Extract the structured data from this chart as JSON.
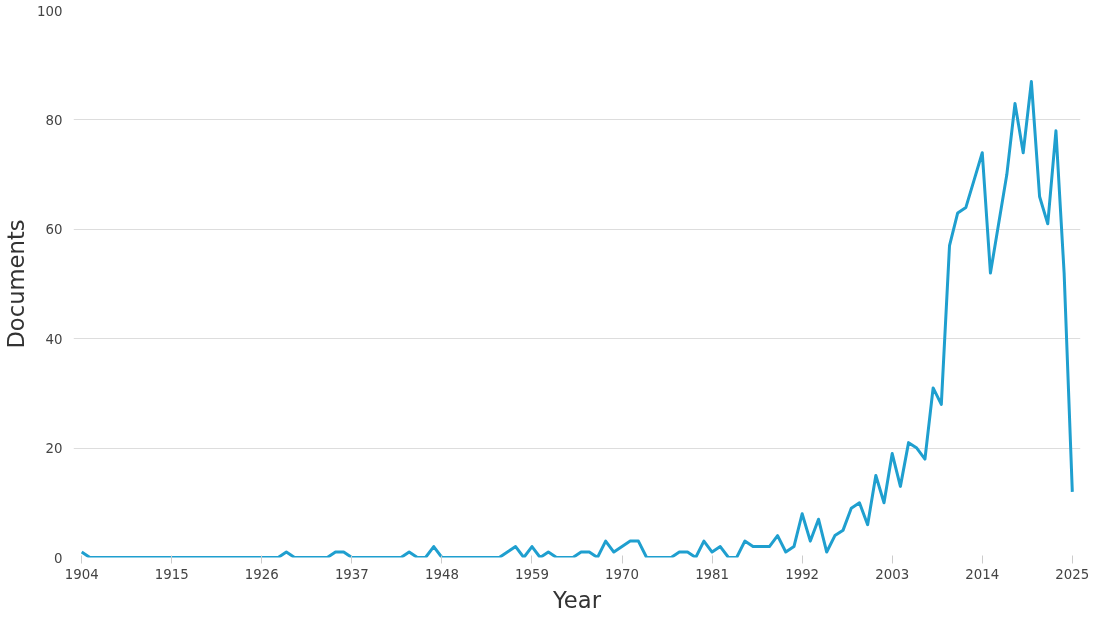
{
  "chart_data": {
    "type": "line",
    "xlabel": "Year",
    "ylabel": "Documents",
    "x": [
      1904,
      1905,
      1906,
      1907,
      1908,
      1909,
      1910,
      1911,
      1912,
      1913,
      1914,
      1915,
      1916,
      1917,
      1918,
      1919,
      1920,
      1921,
      1922,
      1923,
      1924,
      1925,
      1926,
      1927,
      1928,
      1929,
      1930,
      1931,
      1932,
      1933,
      1934,
      1935,
      1936,
      1937,
      1938,
      1939,
      1940,
      1941,
      1942,
      1943,
      1944,
      1945,
      1946,
      1947,
      1948,
      1949,
      1950,
      1951,
      1952,
      1953,
      1954,
      1955,
      1956,
      1957,
      1958,
      1959,
      1960,
      1961,
      1962,
      1963,
      1964,
      1965,
      1966,
      1967,
      1968,
      1969,
      1970,
      1971,
      1972,
      1973,
      1974,
      1975,
      1976,
      1977,
      1978,
      1979,
      1980,
      1981,
      1982,
      1983,
      1984,
      1985,
      1986,
      1987,
      1988,
      1989,
      1990,
      1991,
      1992,
      1993,
      1994,
      1995,
      1996,
      1997,
      1998,
      1999,
      2000,
      2001,
      2002,
      2003,
      2004,
      2005,
      2006,
      2007,
      2008,
      2009,
      2010,
      2011,
      2012,
      2013,
      2014,
      2015,
      2016,
      2017,
      2018,
      2019,
      2020,
      2021,
      2022,
      2023,
      2024,
      2025
    ],
    "series": [
      {
        "color": "#1f9fcf",
        "values": [
          1,
          0,
          0,
          0,
          0,
          0,
          0,
          0,
          0,
          0,
          0,
          0,
          0,
          0,
          0,
          0,
          0,
          0,
          0,
          0,
          0,
          0,
          0,
          0,
          0,
          1,
          0,
          0,
          0,
          0,
          0,
          1,
          1,
          0,
          0,
          0,
          0,
          0,
          0,
          0,
          1,
          0,
          0,
          2,
          0,
          0,
          0,
          0,
          0,
          0,
          0,
          0,
          1,
          2,
          0,
          2,
          0,
          1,
          0,
          0,
          0,
          1,
          1,
          0,
          3,
          1,
          2,
          3,
          3,
          0,
          0,
          0,
          0,
          1,
          1,
          0,
          3,
          1,
          2,
          0,
          0,
          3,
          2,
          2,
          2,
          4,
          1,
          2,
          8,
          3,
          7,
          1,
          4,
          5,
          9,
          10,
          6,
          15,
          10,
          19,
          13,
          21,
          20,
          18,
          31,
          28,
          57,
          63,
          64,
          69,
          74,
          52,
          61,
          70,
          83,
          74,
          87,
          66,
          61,
          78,
          52,
          12
        ]
      }
    ],
    "xlim": [
      1903,
      2026
    ],
    "xticks": [
      1904,
      1915,
      1926,
      1937,
      1948,
      1959,
      1970,
      1981,
      1992,
      2003,
      2014,
      2025
    ],
    "ylim": [
      0,
      100
    ],
    "yticks": [
      0,
      20,
      40,
      60,
      80,
      100
    ],
    "grid": "y",
    "marker": "none",
    "line_style": "solid"
  }
}
